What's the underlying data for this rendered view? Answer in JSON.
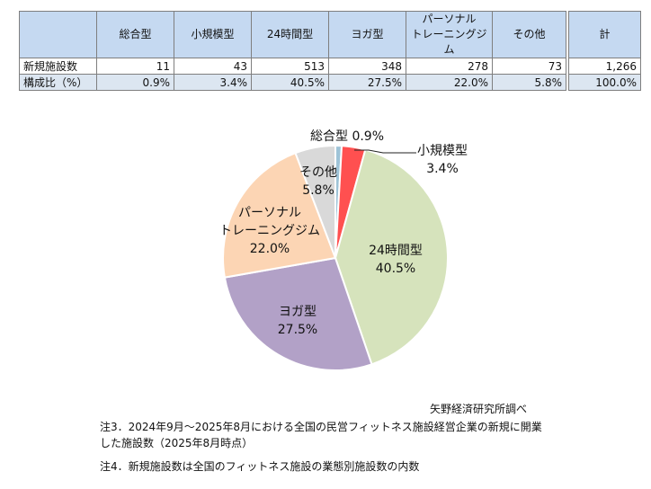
{
  "table": {
    "headers": [
      "総合型",
      "小規模型",
      "24時間型",
      "ヨガ型",
      "パーソナル\nトレーニングジム",
      "その他",
      "計"
    ],
    "rows": [
      {
        "label": "新規施設数",
        "values": [
          "11",
          "43",
          "513",
          "348",
          "278",
          "73",
          "1,266"
        ]
      },
      {
        "label": "構成比（%）",
        "values": [
          "0.9%",
          "3.4%",
          "40.5%",
          "27.5%",
          "22.0%",
          "5.8%",
          "100.0%"
        ]
      }
    ]
  },
  "chart_data": {
    "type": "pie",
    "slices": [
      {
        "name": "総合型",
        "value": 0.9,
        "label": "0.9%",
        "color": "#9ec3d7"
      },
      {
        "name": "小規模型",
        "value": 3.4,
        "label": "3.4%",
        "color": "#ff5050"
      },
      {
        "name": "24時間型",
        "value": 40.5,
        "label": "40.5%",
        "color": "#d6e3bc"
      },
      {
        "name": "ヨガ型",
        "value": 27.5,
        "label": "27.5%",
        "color": "#b2a1c7"
      },
      {
        "name": "パーソナル\nトレーニングジム",
        "value": 22.0,
        "label": "22.0%",
        "color": "#fcd5b4"
      },
      {
        "name": "その他",
        "value": 5.8,
        "label": "5.8%",
        "color": "#d9d9d9"
      }
    ]
  },
  "source": "矢野経済研究所調べ",
  "notes": [
    "注3．2024年9月～2025年8月における全国の民営フィットネス施設経営企業の新規に開業した施設数（2025年8月時点）",
    "注4．新規施設数は全国のフィットネス施設の業態別施設数の内数"
  ]
}
